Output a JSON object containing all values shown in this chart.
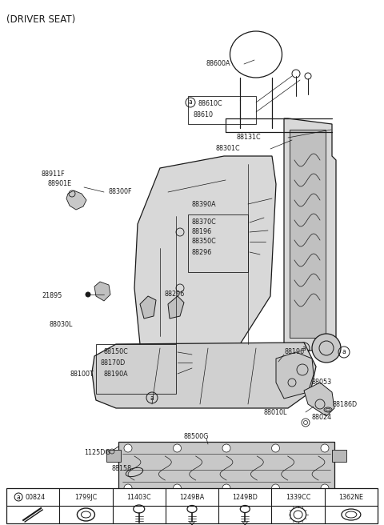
{
  "title": "(DRIVER SEAT)",
  "bg_color": "#ffffff",
  "line_color": "#1a1a1a",
  "text_color": "#1a1a1a",
  "figsize": [
    4.8,
    6.56
  ],
  "dpi": 100,
  "col_names": [
    "00824",
    "1799JC",
    "11403C",
    "1249BA",
    "1249BD",
    "1339CC",
    "1362NE"
  ],
  "label_fs": 5.8,
  "title_fs": 8.5
}
